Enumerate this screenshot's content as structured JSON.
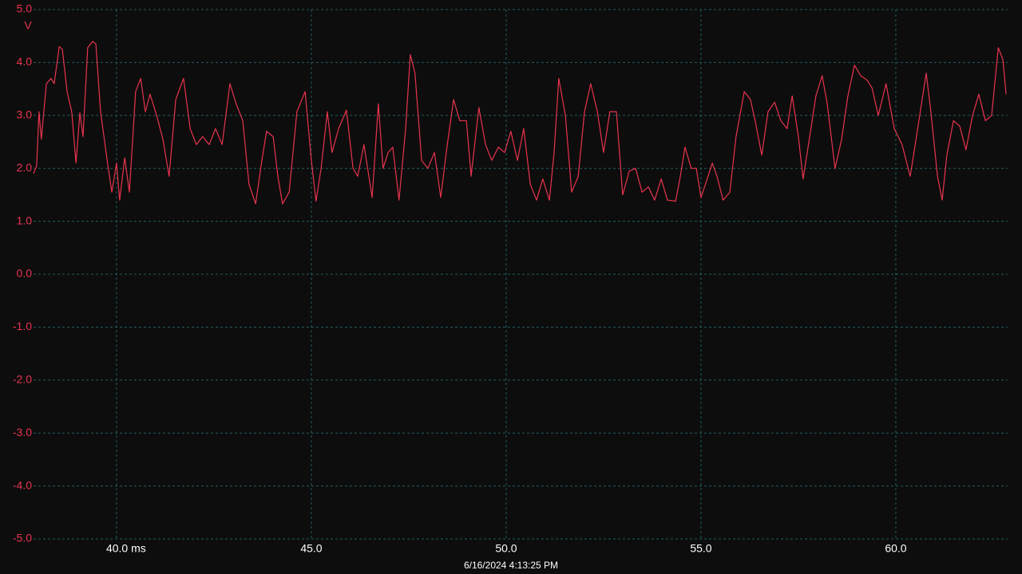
{
  "chart_data": {
    "type": "line",
    "y_label": "V",
    "footer": "6/16/2024 4:13:25 PM",
    "xlim": [
      37.87,
      62.87
    ],
    "ylim": [
      -5,
      5
    ],
    "xticks": [
      {
        "value": 40,
        "label": "40.0 ms"
      },
      {
        "value": 45,
        "label": "45.0"
      },
      {
        "value": 50,
        "label": "50.0"
      },
      {
        "value": 55,
        "label": "55.0"
      },
      {
        "value": 60,
        "label": "60.0"
      }
    ],
    "yticks": [
      {
        "value": 5,
        "label": "5.0"
      },
      {
        "value": 4,
        "label": "4.0"
      },
      {
        "value": 3,
        "label": "3.0"
      },
      {
        "value": 2,
        "label": "2.0"
      },
      {
        "value": 1,
        "label": "1.0"
      },
      {
        "value": 0,
        "label": "0.0"
      },
      {
        "value": -1,
        "label": "-1.0"
      },
      {
        "value": -2,
        "label": "-2.0"
      },
      {
        "value": -3,
        "label": "-3.0"
      },
      {
        "value": -4,
        "label": "-4.0"
      },
      {
        "value": -5,
        "label": "-5.0"
      }
    ],
    "grid": true,
    "x": [
      37.87,
      37.95,
      38.01,
      38.07,
      38.2,
      38.32,
      38.4,
      38.53,
      38.61,
      38.73,
      38.85,
      38.96,
      39.06,
      39.14,
      39.26,
      39.39,
      39.47,
      39.59,
      39.76,
      39.88,
      40.0,
      40.08,
      40.21,
      40.33,
      40.49,
      40.62,
      40.74,
      40.86,
      41.03,
      41.19,
      41.35,
      41.52,
      41.72,
      41.89,
      42.05,
      42.21,
      42.38,
      42.54,
      42.71,
      42.91,
      43.07,
      43.24,
      43.4,
      43.57,
      43.73,
      43.85,
      44.02,
      44.14,
      44.26,
      44.43,
      44.63,
      44.84,
      45.0,
      45.12,
      45.25,
      45.41,
      45.53,
      45.7,
      45.9,
      46.07,
      46.19,
      46.35,
      46.56,
      46.72,
      46.84,
      46.97,
      47.09,
      47.25,
      47.42,
      47.54,
      47.66,
      47.83,
      47.99,
      48.16,
      48.32,
      48.48,
      48.65,
      48.81,
      48.98,
      49.1,
      49.3,
      49.47,
      49.63,
      49.8,
      49.96,
      50.12,
      50.29,
      50.45,
      50.62,
      50.78,
      50.94,
      51.11,
      51.23,
      51.35,
      51.52,
      51.68,
      51.85,
      52.01,
      52.17,
      52.34,
      52.5,
      52.66,
      52.83,
      52.99,
      53.16,
      53.32,
      53.49,
      53.65,
      53.81,
      53.98,
      54.14,
      54.35,
      54.47,
      54.59,
      54.75,
      54.88,
      55.0,
      55.16,
      55.29,
      55.41,
      55.57,
      55.74,
      55.9,
      56.11,
      56.27,
      56.39,
      56.56,
      56.72,
      56.89,
      57.05,
      57.21,
      57.34,
      57.5,
      57.62,
      57.79,
      57.95,
      58.11,
      58.24,
      58.44,
      58.61,
      58.77,
      58.94,
      59.1,
      59.26,
      59.39,
      59.55,
      59.75,
      59.96,
      60.16,
      60.37,
      60.53,
      60.78,
      60.9,
      61.07,
      61.19,
      61.31,
      61.48,
      61.64,
      61.8,
      61.97,
      62.13,
      62.3,
      62.46,
      62.63,
      62.75,
      62.83
    ],
    "series": [
      {
        "color": "#e8344e",
        "values": [
          1.9,
          2.05,
          3.07,
          2.55,
          3.6,
          3.7,
          3.6,
          4.3,
          4.25,
          3.45,
          3.07,
          2.1,
          3.05,
          2.6,
          4.28,
          4.4,
          4.35,
          3.07,
          2.15,
          1.55,
          2.1,
          1.4,
          2.2,
          1.55,
          3.45,
          3.7,
          3.07,
          3.4,
          3.0,
          2.55,
          1.85,
          3.3,
          3.7,
          2.75,
          2.45,
          2.6,
          2.45,
          2.75,
          2.45,
          3.6,
          3.22,
          2.9,
          1.7,
          1.33,
          2.15,
          2.7,
          2.6,
          1.85,
          1.33,
          1.55,
          3.07,
          3.45,
          2.15,
          1.38,
          2.0,
          3.07,
          2.3,
          2.75,
          3.1,
          2.0,
          1.85,
          2.45,
          1.45,
          3.22,
          2.0,
          2.3,
          2.4,
          1.4,
          2.75,
          4.15,
          3.8,
          2.15,
          2.0,
          2.3,
          1.45,
          2.4,
          3.3,
          2.9,
          2.9,
          1.85,
          3.15,
          2.45,
          2.15,
          2.4,
          2.3,
          2.7,
          2.15,
          2.75,
          1.7,
          1.4,
          1.8,
          1.4,
          2.3,
          3.7,
          3.0,
          1.55,
          1.85,
          3.07,
          3.6,
          3.07,
          2.3,
          3.07,
          3.07,
          1.5,
          1.95,
          2.0,
          1.55,
          1.65,
          1.4,
          1.8,
          1.4,
          1.38,
          1.85,
          2.4,
          2.0,
          2.0,
          1.45,
          1.8,
          2.1,
          1.85,
          1.4,
          1.55,
          2.6,
          3.45,
          3.3,
          2.9,
          2.25,
          3.07,
          3.25,
          2.9,
          2.75,
          3.37,
          2.6,
          1.8,
          2.6,
          3.37,
          3.75,
          3.22,
          2.0,
          2.55,
          3.37,
          3.95,
          3.75,
          3.67,
          3.52,
          3.0,
          3.6,
          2.75,
          2.45,
          1.85,
          2.6,
          3.8,
          3.07,
          1.85,
          1.4,
          2.25,
          2.9,
          2.8,
          2.35,
          3.0,
          3.4,
          2.9,
          3.0,
          4.28,
          4.05,
          3.4
        ]
      }
    ]
  }
}
